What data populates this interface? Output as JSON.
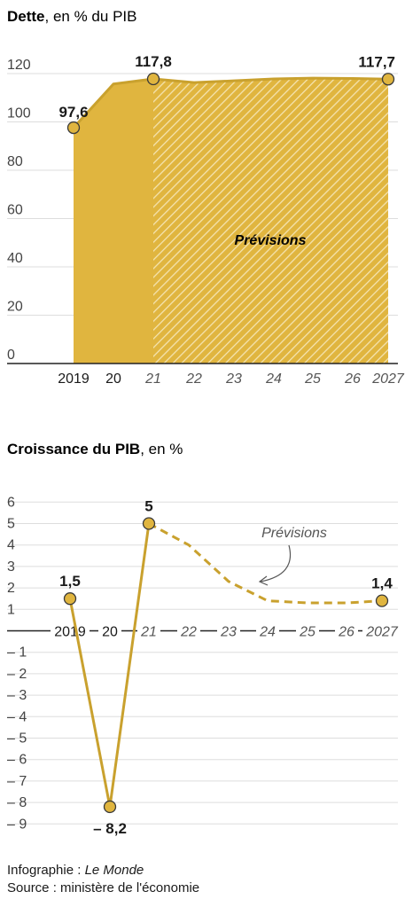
{
  "colors": {
    "fill": "#e0b53f",
    "fill_hatch": "#ebcf7d",
    "line": "#c9a12e",
    "grid": "#dddddd",
    "axis": "#222222",
    "text": "#1a1a1a",
    "muted": "#555555"
  },
  "chart_data": [
    {
      "type": "area",
      "title": "Dette",
      "subtitle": ", en % du PIB",
      "x": [
        2019,
        2020,
        2021,
        2022,
        2023,
        2024,
        2025,
        2026,
        2027
      ],
      "x_tick_labels": [
        "2019",
        "20",
        "21",
        "22",
        "23",
        "24",
        "25",
        "26",
        "2027"
      ],
      "values": [
        97.6,
        115.7,
        117.8,
        116.3,
        117.0,
        117.8,
        118.1,
        118.0,
        117.7
      ],
      "forecast_start_index": 2,
      "ylim": [
        0,
        120
      ],
      "y_ticks": [
        0,
        20,
        40,
        60,
        80,
        100,
        120
      ],
      "grid": true,
      "data_labels": [
        {
          "index": 0,
          "text": "97,6"
        },
        {
          "index": 2,
          "text": "117,8"
        },
        {
          "index": 8,
          "text": "117,7"
        }
      ],
      "annotation": "Prévisions"
    },
    {
      "type": "line",
      "title": "Croissance du PIB",
      "subtitle": ", en %",
      "x": [
        2019,
        2020,
        2021,
        2022,
        2023,
        2024,
        2025,
        2026,
        2027
      ],
      "x_tick_labels": [
        "2019",
        "20",
        "21",
        "22",
        "23",
        "24",
        "25",
        "26",
        "2027"
      ],
      "values": [
        1.5,
        -8.2,
        5.0,
        4.0,
        2.3,
        1.4,
        1.3,
        1.3,
        1.4
      ],
      "forecast_start_index": 2,
      "ylim": [
        -9,
        6
      ],
      "y_ticks": [
        6,
        5,
        4,
        3,
        2,
        1,
        -1,
        -2,
        -3,
        -4,
        -5,
        -6,
        -7,
        -8,
        -9
      ],
      "y_tick_labels": [
        "6",
        "5",
        "4",
        "3",
        "2",
        "1",
        "– 1",
        "– 2",
        "– 3",
        "– 4",
        "– 5",
        "– 6",
        "– 7",
        "– 8",
        "– 9"
      ],
      "grid": true,
      "data_labels": [
        {
          "index": 0,
          "text": "1,5"
        },
        {
          "index": 1,
          "text": "– 8,2"
        },
        {
          "index": 2,
          "text": "5"
        },
        {
          "index": 8,
          "text": "1,4"
        }
      ],
      "annotation": "Prévisions"
    }
  ],
  "credits": {
    "line1_prefix": "Infographie : ",
    "line1_name": "Le Monde",
    "line2": "Source : ministère de l'économie"
  }
}
